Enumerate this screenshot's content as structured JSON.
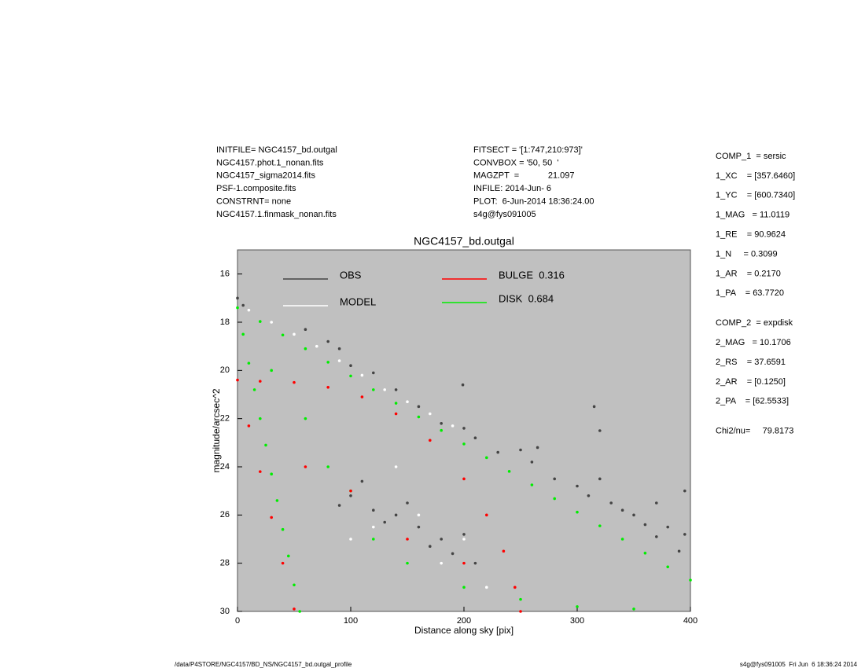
{
  "header": {
    "left": [
      "INITFILE= NGC4157_bd.outgal",
      "NGC4157.phot.1_nonan.fits",
      "NGC4157_sigma2014.fits",
      "PSF-1.composite.fits",
      "CONSTRNT= none",
      "NGC4157.1.finmask_nonan.fits"
    ],
    "middle": [
      "FITSECT = '[1:747,210:973]'",
      "CONVBOX = '50, 50  '",
      "MAGZPT  =            21.097",
      "INFILE: 2014-Jun- 6",
      "PLOT:  6-Jun-2014 18:36:24.00",
      "s4g@fys091005"
    ]
  },
  "params": [
    [
      "COMP_1  = sersic",
      "1_XC    = [357.6460]",
      "1_YC    = [600.7340]",
      "1_MAG   = 11.0119",
      "1_RE    = 90.9624",
      "1_N     = 0.3099",
      "1_AR    = 0.2170",
      "1_PA    = 63.7720"
    ],
    [
      "COMP_2  = expdisk",
      "2_MAG   = 10.1706",
      "2_RS    = 37.6591",
      "2_AR    = [0.1250]",
      "2_PA    = [62.5533]"
    ],
    [
      "Chi2/nu=     79.8173"
    ]
  ],
  "footer": {
    "left": "/data/P4STORE/NGC4157/BD_NS/NGC4157_bd.outgal_profile",
    "right": "s4g@fys091005  Fri Jun  6 18:36:24 2014"
  },
  "chart_data": {
    "type": "scatter",
    "title": "NGC4157_bd.outgal",
    "x_label": "Distance along sky [pix]",
    "y_label": "magnitude/arcsec^2",
    "xlim": [
      0,
      400
    ],
    "ylim": [
      30,
      15
    ],
    "xticks": [
      0,
      100,
      200,
      300,
      400
    ],
    "yticks": [
      16,
      18,
      20,
      22,
      24,
      26,
      28,
      30
    ],
    "background": "#c0c0c0",
    "series": [
      {
        "name": "OBS",
        "color": "#444444",
        "x": [
          0,
          5,
          60,
          80,
          90,
          100,
          120,
          140,
          160,
          180,
          199,
          200,
          210,
          230,
          250,
          260,
          265,
          280,
          300,
          310,
          315,
          320,
          320,
          330,
          340,
          350,
          360,
          370,
          370,
          380,
          390,
          395,
          395,
          90,
          100,
          110,
          120,
          130,
          140,
          150,
          160,
          170,
          180,
          190,
          200,
          210
        ],
        "y": [
          17.0,
          17.3,
          18.3,
          18.8,
          19.1,
          19.8,
          20.1,
          20.8,
          21.5,
          22.2,
          20.6,
          22.4,
          22.8,
          23.4,
          23.3,
          23.8,
          23.2,
          24.5,
          24.8,
          25.2,
          21.5,
          22.5,
          24.5,
          25.5,
          25.8,
          26.0,
          26.4,
          25.5,
          26.9,
          26.5,
          27.5,
          26.8,
          25.0,
          25.6,
          25.2,
          24.6,
          25.8,
          26.3,
          26.0,
          25.5,
          26.5,
          27.3,
          27.0,
          27.6,
          26.8,
          28.0
        ]
      },
      {
        "name": "MODEL",
        "color": "#ffffff",
        "x": [
          10,
          30,
          50,
          70,
          90,
          110,
          130,
          150,
          170,
          190,
          100,
          120,
          140,
          160,
          180,
          200,
          220
        ],
        "y": [
          17.5,
          18.0,
          18.5,
          19.0,
          19.6,
          20.2,
          20.8,
          21.3,
          21.8,
          22.3,
          27.0,
          26.5,
          24.0,
          26.0,
          28.0,
          27.0,
          29.0
        ]
      },
      {
        "name": "BULGE  0.316",
        "color": "#ff0000",
        "x": [
          0,
          20,
          50,
          80,
          110,
          140,
          170,
          200,
          220,
          235,
          245,
          250,
          10,
          20,
          30,
          40,
          50,
          60,
          100,
          150,
          200
        ],
        "y": [
          20.4,
          20.45,
          20.5,
          20.7,
          21.1,
          21.8,
          22.9,
          24.5,
          26.0,
          27.5,
          29.0,
          30.0,
          22.3,
          24.2,
          26.1,
          28.0,
          29.9,
          24.0,
          25.0,
          27.0,
          28.0
        ]
      },
      {
        "name": "DISK  0.684",
        "color": "#00ee00",
        "x": [
          0,
          20,
          40,
          60,
          80,
          100,
          120,
          140,
          160,
          180,
          200,
          220,
          240,
          260,
          280,
          300,
          320,
          340,
          360,
          380,
          400,
          5,
          10,
          15,
          20,
          25,
          30,
          35,
          40,
          45,
          50,
          55,
          30,
          60,
          80,
          100,
          120,
          150,
          200,
          250,
          300,
          350
        ],
        "y": [
          17.4,
          17.97,
          18.53,
          19.1,
          19.66,
          20.23,
          20.8,
          21.36,
          21.93,
          22.49,
          23.05,
          23.62,
          24.19,
          24.75,
          25.32,
          25.88,
          26.45,
          27.0,
          27.58,
          28.15,
          28.7,
          18.5,
          19.7,
          20.8,
          22.0,
          23.1,
          24.3,
          25.4,
          26.6,
          27.7,
          28.9,
          30.0,
          20.0,
          22.0,
          24.0,
          25.0,
          27.0,
          28.0,
          29.0,
          29.5,
          29.8,
          29.9
        ]
      }
    ]
  }
}
